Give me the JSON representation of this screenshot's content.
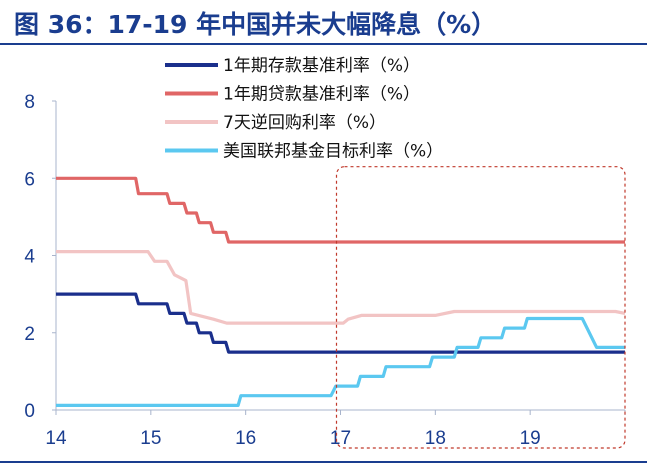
{
  "chart_data": {
    "type": "line",
    "title": "图 36：17-19 年中国并未大幅降息（%）",
    "xlabel": "",
    "ylabel": "",
    "x_ticks": [
      "14",
      "15",
      "16",
      "17",
      "18",
      "19"
    ],
    "y_ticks": [
      "0",
      "2",
      "4",
      "6",
      "8"
    ],
    "xlim": [
      2014,
      2020
    ],
    "ylim": [
      0,
      8
    ],
    "legend_position": "top",
    "highlight_box": {
      "x_range": [
        2017,
        2020
      ],
      "y_range": [
        0,
        6.3
      ],
      "style": "dashed",
      "color": "#c0392b"
    },
    "series": [
      {
        "name": "1年期存款基准利率（%）",
        "color": "#1a2f8c",
        "points": [
          [
            2014.0,
            3.0
          ],
          [
            2014.84,
            3.0
          ],
          [
            2014.87,
            2.75
          ],
          [
            2015.17,
            2.75
          ],
          [
            2015.2,
            2.5
          ],
          [
            2015.35,
            2.5
          ],
          [
            2015.38,
            2.25
          ],
          [
            2015.48,
            2.25
          ],
          [
            2015.51,
            2.0
          ],
          [
            2015.63,
            2.0
          ],
          [
            2015.66,
            1.75
          ],
          [
            2015.79,
            1.75
          ],
          [
            2015.82,
            1.5
          ],
          [
            2020.0,
            1.5
          ]
        ]
      },
      {
        "name": "1年期贷款基准利率（%）",
        "color": "#e06666",
        "points": [
          [
            2014.0,
            6.0
          ],
          [
            2014.84,
            6.0
          ],
          [
            2014.87,
            5.6
          ],
          [
            2015.17,
            5.6
          ],
          [
            2015.2,
            5.35
          ],
          [
            2015.35,
            5.35
          ],
          [
            2015.38,
            5.1
          ],
          [
            2015.48,
            5.1
          ],
          [
            2015.51,
            4.85
          ],
          [
            2015.63,
            4.85
          ],
          [
            2015.66,
            4.6
          ],
          [
            2015.79,
            4.6
          ],
          [
            2015.82,
            4.35
          ],
          [
            2020.0,
            4.35
          ]
        ]
      },
      {
        "name": "7天逆回购利率（%）",
        "color": "#f2c4c4",
        "points": [
          [
            2014.0,
            4.1
          ],
          [
            2014.97,
            4.1
          ],
          [
            2015.04,
            3.85
          ],
          [
            2015.17,
            3.85
          ],
          [
            2015.25,
            3.5
          ],
          [
            2015.37,
            3.35
          ],
          [
            2015.42,
            2.5
          ],
          [
            2015.66,
            2.35
          ],
          [
            2015.8,
            2.25
          ],
          [
            2017.03,
            2.25
          ],
          [
            2017.08,
            2.35
          ],
          [
            2017.22,
            2.45
          ],
          [
            2018.0,
            2.45
          ],
          [
            2018.2,
            2.55
          ],
          [
            2019.9,
            2.55
          ],
          [
            2020.0,
            2.5
          ]
        ]
      },
      {
        "name": "美国联邦基金目标利率（%）",
        "color": "#5bc8f0",
        "points": [
          [
            2014.0,
            0.12
          ],
          [
            2015.92,
            0.12
          ],
          [
            2015.95,
            0.37
          ],
          [
            2016.9,
            0.37
          ],
          [
            2016.95,
            0.62
          ],
          [
            2017.18,
            0.62
          ],
          [
            2017.21,
            0.87
          ],
          [
            2017.45,
            0.87
          ],
          [
            2017.48,
            1.12
          ],
          [
            2017.94,
            1.12
          ],
          [
            2017.97,
            1.37
          ],
          [
            2018.2,
            1.37
          ],
          [
            2018.23,
            1.62
          ],
          [
            2018.45,
            1.62
          ],
          [
            2018.48,
            1.87
          ],
          [
            2018.7,
            1.87
          ],
          [
            2018.73,
            2.12
          ],
          [
            2018.94,
            2.12
          ],
          [
            2018.97,
            2.37
          ],
          [
            2019.55,
            2.37
          ],
          [
            2019.7,
            1.62
          ],
          [
            2020.0,
            1.62
          ]
        ]
      }
    ]
  }
}
